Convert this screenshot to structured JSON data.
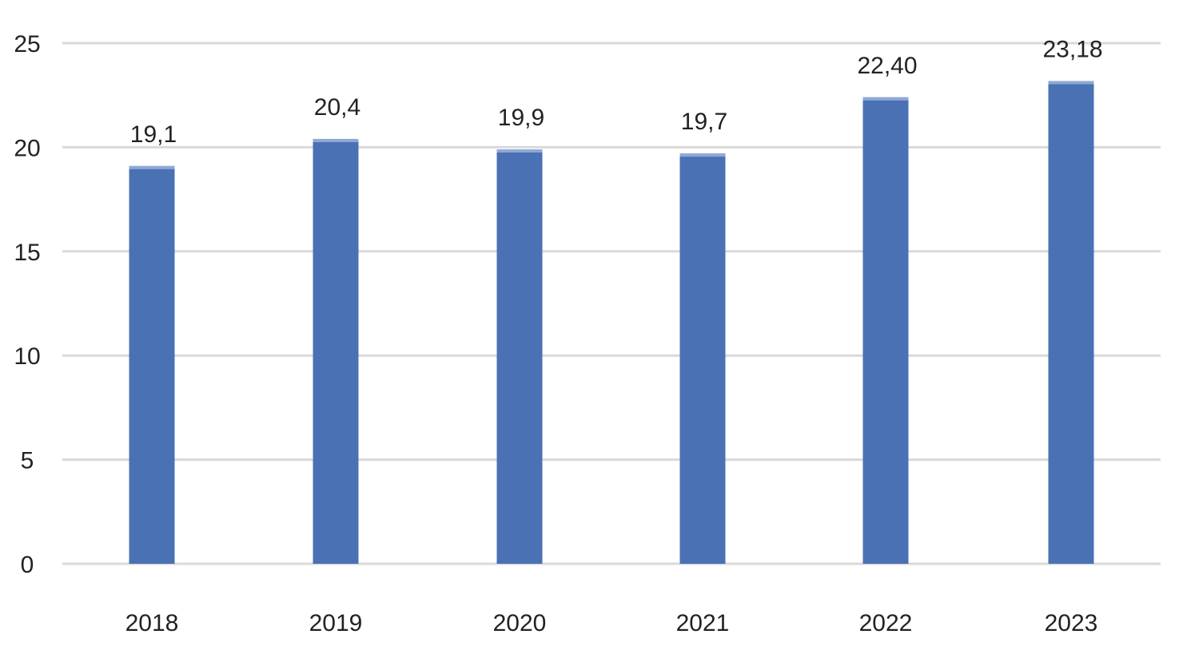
{
  "chart_data": {
    "type": "bar",
    "categories": [
      "2018",
      "2019",
      "2020",
      "2021",
      "2022",
      "2023"
    ],
    "values": [
      19.1,
      20.4,
      19.9,
      19.7,
      22.4,
      23.18
    ],
    "value_labels": [
      "19,1",
      "20,4",
      "19,9",
      "19,7",
      "22,40",
      "23,18"
    ],
    "y_ticks": [
      "0",
      "5",
      "10",
      "15",
      "20",
      "25"
    ],
    "y_tick_values": [
      0,
      5,
      10,
      15,
      20,
      25
    ],
    "ylim": [
      0,
      25
    ],
    "grid": true,
    "legend": "none",
    "title": "",
    "xlabel": "",
    "ylabel": "",
    "colors": {
      "bar": "#4A71B4",
      "bar_highlight": "#8FA8D6",
      "grid": "#D9D9D9",
      "text": "#222222"
    }
  }
}
